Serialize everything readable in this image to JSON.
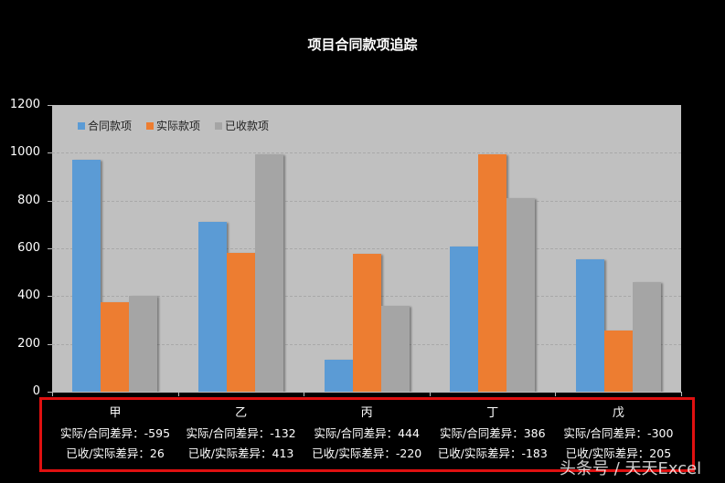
{
  "title": "项目合同款项追踪",
  "legend": [
    {
      "label": "合同款项",
      "color": "#5b9bd5"
    },
    {
      "label": "实际款项",
      "color": "#ed7d31"
    },
    {
      "label": "已收款项",
      "color": "#a5a5a5"
    }
  ],
  "y_ticks": [
    "0",
    "200",
    "400",
    "600",
    "800",
    "1000",
    "1200"
  ],
  "categories": [
    {
      "name": "甲",
      "line1": "实际/合同差异：-595",
      "line2": "已收/实际差异：26"
    },
    {
      "name": "乙",
      "line1": "实际/合同差异：-132",
      "line2": "已收/实际差异：413"
    },
    {
      "name": "丙",
      "line1": "实际/合同差异：444",
      "line2": "已收/实际差异：-220"
    },
    {
      "name": "丁",
      "line1": "实际/合同差异：386",
      "line2": "已收/实际差异：-183"
    },
    {
      "name": "戊",
      "line1": "实际/合同差异：-300",
      "line2": "已收/实际差异：205"
    }
  ],
  "watermark": "头条号 / 天天Excel",
  "chart_data": {
    "type": "bar",
    "title": "项目合同款项追踪",
    "categories": [
      "甲",
      "乙",
      "丙",
      "丁",
      "戊"
    ],
    "series": [
      {
        "name": "合同款项",
        "color": "#5b9bd5",
        "values": [
          970,
          712,
          135,
          608,
          555
        ]
      },
      {
        "name": "实际款项",
        "color": "#ed7d31",
        "values": [
          375,
          580,
          579,
          994,
          255
        ]
      },
      {
        "name": "已收款项",
        "color": "#a5a5a5",
        "values": [
          401,
          993,
          359,
          811,
          460
        ]
      }
    ],
    "annotations": [
      {
        "category": "甲",
        "实际/合同差异": -595,
        "已收/实际差异": 26
      },
      {
        "category": "乙",
        "实际/合同差异": -132,
        "已收/实际差异": 413
      },
      {
        "category": "丙",
        "实际/合同差异": 444,
        "已收/实际差异": -220
      },
      {
        "category": "丁",
        "实际/合同差异": 386,
        "已收/实际差异": -183
      },
      {
        "category": "戊",
        "实际/合同差异": -300,
        "已收/实际差异": 205
      }
    ],
    "xlabel": "",
    "ylabel": "",
    "ylim": [
      0,
      1200
    ],
    "yticks": [
      0,
      200,
      400,
      600,
      800,
      1000,
      1200
    ],
    "grid": true,
    "legend_position": "top-left inside"
  }
}
